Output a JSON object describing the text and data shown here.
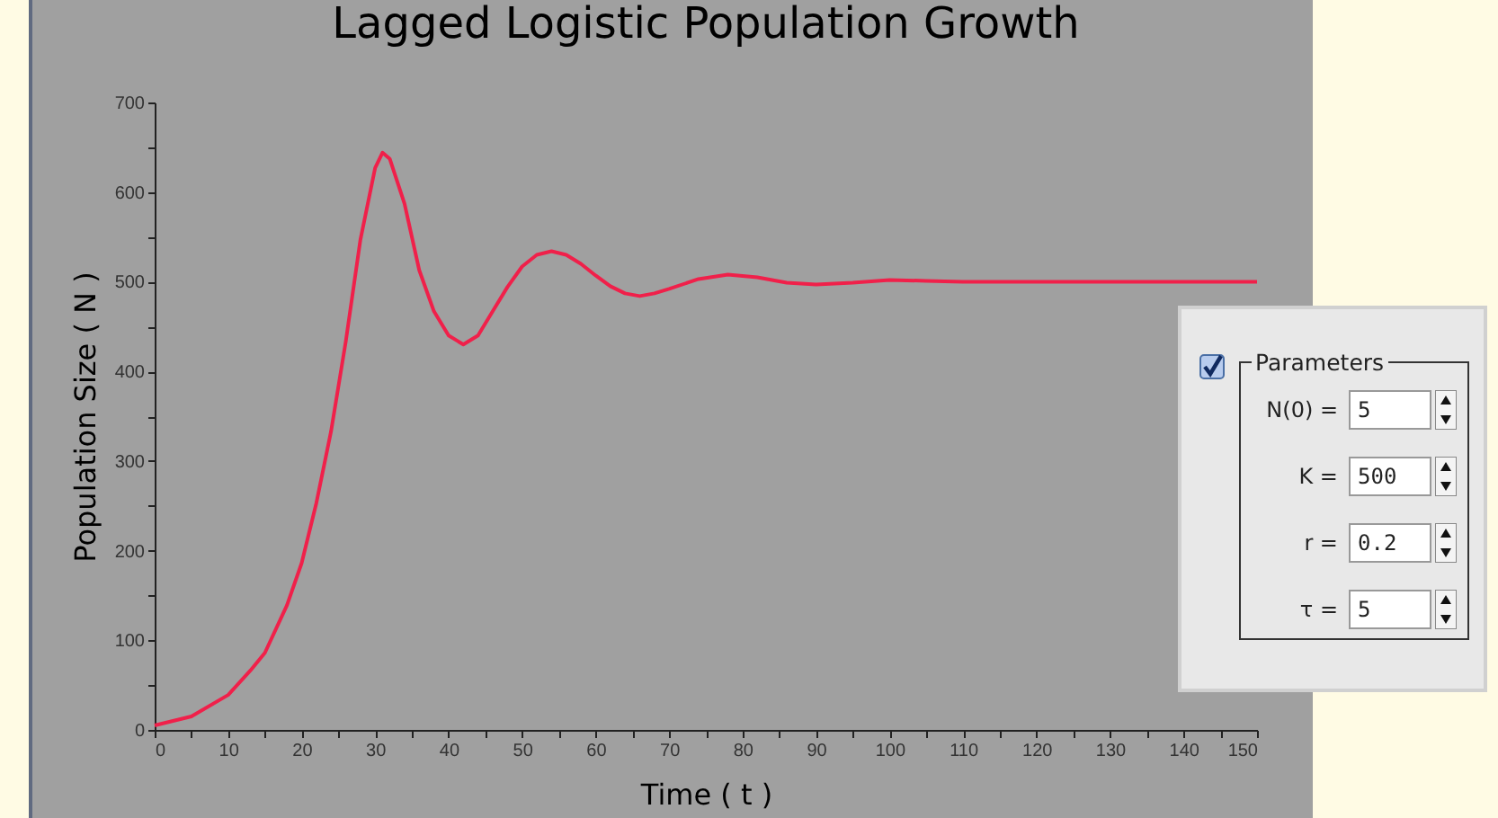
{
  "chart_data": [
    {
      "type": "line",
      "title": "Lagged Logistic Population Growth",
      "xlabel": "Time ( t )",
      "ylabel": "Population Size ( N )",
      "x": [
        0,
        5,
        10,
        13,
        15,
        18,
        20,
        22,
        24,
        26,
        28,
        30,
        31,
        32,
        34,
        36,
        38,
        40,
        42,
        44,
        46,
        48,
        50,
        52,
        54,
        56,
        58,
        60,
        62,
        64,
        66,
        68,
        70,
        74,
        78,
        82,
        86,
        90,
        95,
        100,
        105,
        110,
        120,
        130,
        140,
        150
      ],
      "series": [
        {
          "color": "#f0204a",
          "values": [
            5,
            15,
            39,
            66,
            86,
            139,
            186,
            253,
            333,
            433,
            547,
            627,
            644,
            637,
            587,
            513,
            467,
            440,
            430,
            440,
            467,
            494,
            517,
            530,
            534,
            530,
            520,
            507,
            495,
            487,
            484,
            487,
            492,
            503,
            508,
            505,
            499,
            497,
            499,
            502,
            501,
            500,
            500,
            500,
            500,
            500
          ]
        }
      ],
      "xlim": [
        0,
        150
      ],
      "ylim": [
        0,
        700
      ],
      "xticks": [
        0,
        {
          "value": 5,
          "label": null
        },
        10,
        {
          "value": 15,
          "label": null
        },
        20,
        {
          "value": 25,
          "label": null
        },
        30,
        {
          "value": 35,
          "label": null
        },
        40,
        {
          "value": 45,
          "label": null
        },
        50,
        {
          "value": 55,
          "label": null
        },
        60,
        {
          "value": 65,
          "label": null
        },
        70,
        {
          "value": 75,
          "label": null
        },
        80,
        {
          "value": 85,
          "label": null
        },
        90,
        {
          "value": 95,
          "label": null
        },
        100,
        {
          "value": 105,
          "label": null
        },
        110,
        {
          "value": 115,
          "label": null
        },
        120,
        {
          "value": 125,
          "label": null
        },
        130,
        {
          "value": 135,
          "label": null
        },
        140,
        {
          "value": 145,
          "label": null
        },
        150
      ],
      "yticks": [
        0,
        {
          "value": 50,
          "label": null
        },
        100,
        {
          "value": 150,
          "label": null
        },
        200,
        {
          "value": 250,
          "label": null
        },
        300,
        {
          "value": 350,
          "label": null
        },
        400,
        {
          "value": 450,
          "label": null
        },
        500,
        {
          "value": 550,
          "label": null
        },
        600,
        {
          "value": 650,
          "label": null
        },
        700
      ],
      "grid": false,
      "legend": false,
      "marker": "none",
      "line_style": "solid"
    },
    {
      "type": "other",
      "title": "Parameters",
      "annotations": [
        "N(0) =",
        "5",
        "K =",
        "500",
        "r =",
        "0.2",
        "τ =",
        "5"
      ]
    }
  ]
}
